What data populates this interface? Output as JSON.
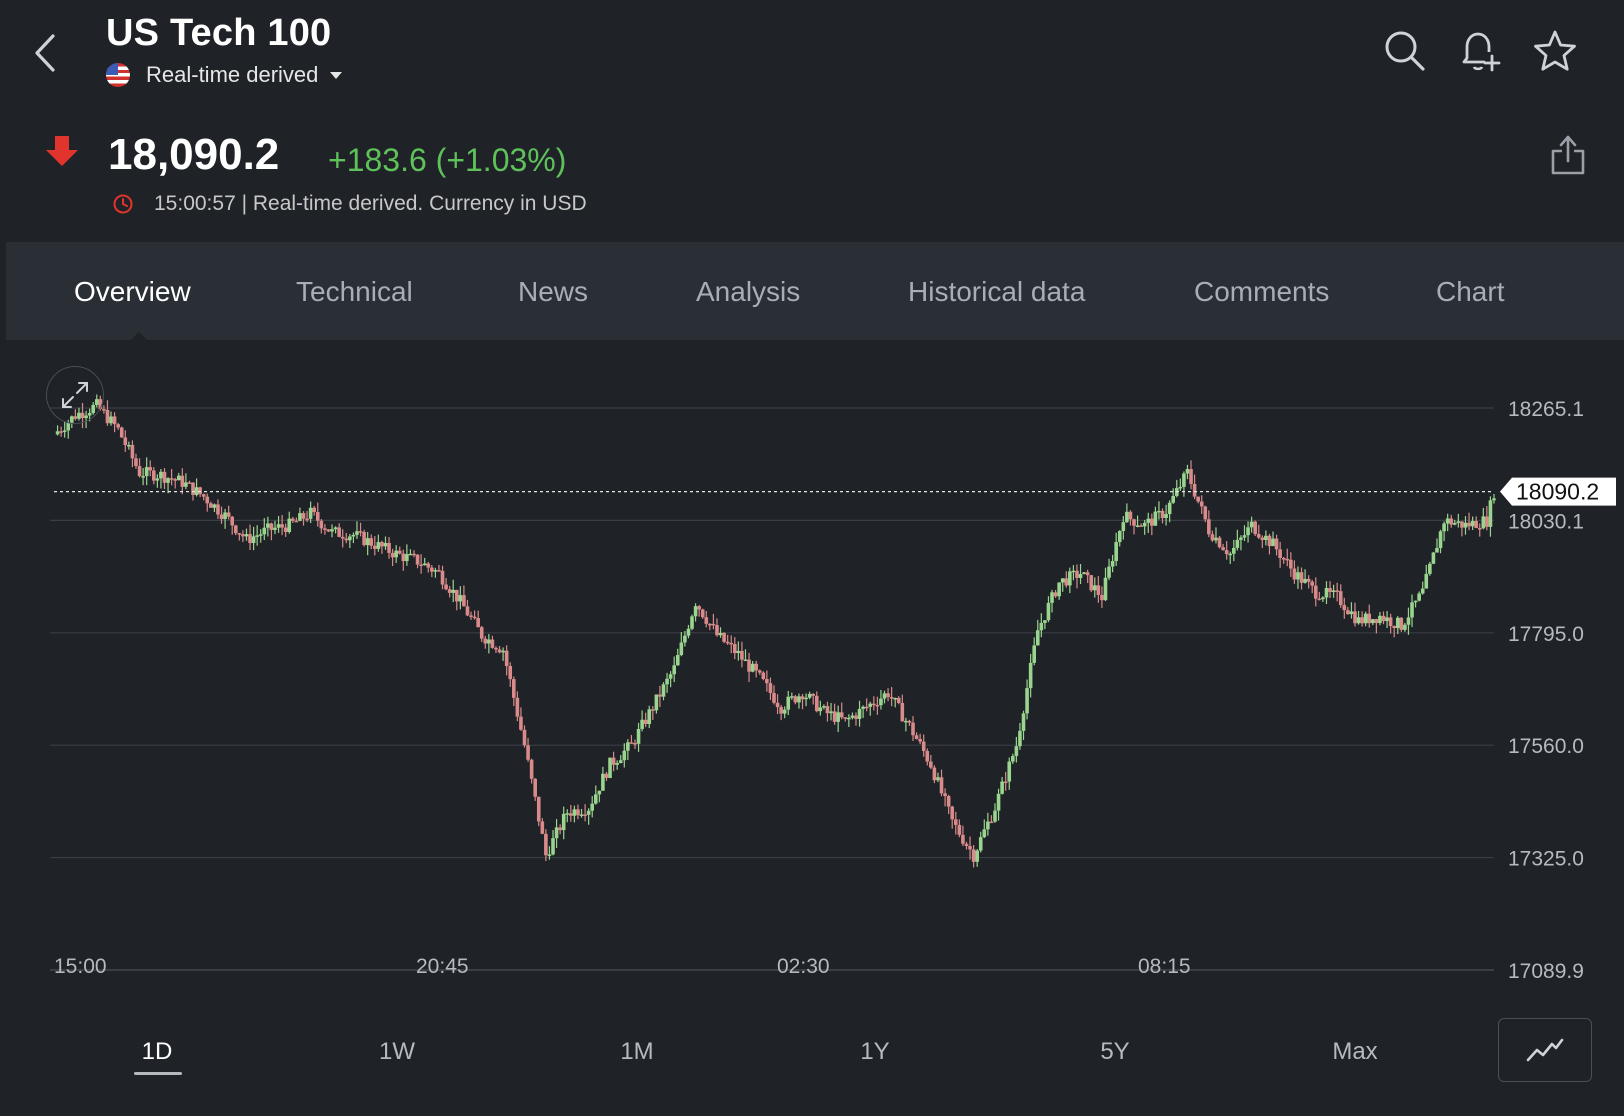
{
  "header": {
    "title": "US Tech 100",
    "source_label": "Real-time derived"
  },
  "quote": {
    "price": "18,090.2",
    "change": "+183.6 (+1.03%)",
    "meta": "15:00:57 | Real-time derived. Currency in USD"
  },
  "tabs": [
    {
      "label": "Overview",
      "active": true
    },
    {
      "label": "Technical"
    },
    {
      "label": "News"
    },
    {
      "label": "Analysis"
    },
    {
      "label": "Historical data"
    },
    {
      "label": "Comments"
    },
    {
      "label": "Chart"
    }
  ],
  "periods": [
    {
      "label": "1D",
      "active": true
    },
    {
      "label": "1W"
    },
    {
      "label": "1M"
    },
    {
      "label": "1Y"
    },
    {
      "label": "5Y"
    },
    {
      "label": "Max"
    }
  ],
  "colors": {
    "background": "#1f2227",
    "tab_bar": "#2a2e35",
    "up": "#5fc15a",
    "candle_up": "#9ad58f",
    "candle_down": "#d98b8b",
    "down_arrow": "#e0342c"
  },
  "icons": [
    "back-chevron-icon",
    "search-icon",
    "bell-plus-icon",
    "star-icon",
    "down-arrow-icon",
    "clock-icon",
    "share-icon",
    "expand-icon",
    "line-chart-icon"
  ],
  "chart_data": {
    "type": "candlestick",
    "y_ticks": [
      "18265.1",
      "18030.1",
      "17795.0",
      "17560.0",
      "17325.0",
      "17089.9"
    ],
    "x_ticks": [
      "15:00",
      "20:45",
      "02:30",
      "08:15"
    ],
    "current_price_label": "18090.2",
    "current_price": 18090.2,
    "ylim": [
      17089.9,
      18265.1
    ],
    "grid": true,
    "close_path": [
      [
        0,
        18210
      ],
      [
        6,
        18250
      ],
      [
        12,
        18270
      ],
      [
        18,
        18220
      ],
      [
        24,
        18130
      ],
      [
        30,
        18125
      ],
      [
        36,
        18110
      ],
      [
        42,
        18080
      ],
      [
        48,
        18040
      ],
      [
        54,
        17990
      ],
      [
        60,
        18010
      ],
      [
        66,
        18020
      ],
      [
        72,
        18045
      ],
      [
        78,
        18005
      ],
      [
        84,
        18000
      ],
      [
        90,
        17980
      ],
      [
        96,
        17960
      ],
      [
        102,
        17945
      ],
      [
        108,
        17920
      ],
      [
        114,
        17860
      ],
      [
        120,
        17790
      ],
      [
        126,
        17760
      ],
      [
        132,
        17560
      ],
      [
        138,
        17330
      ],
      [
        144,
        17420
      ],
      [
        150,
        17430
      ],
      [
        156,
        17520
      ],
      [
        162,
        17560
      ],
      [
        168,
        17640
      ],
      [
        174,
        17720
      ],
      [
        180,
        17860
      ],
      [
        186,
        17790
      ],
      [
        192,
        17750
      ],
      [
        198,
        17700
      ],
      [
        204,
        17640
      ],
      [
        210,
        17670
      ],
      [
        216,
        17630
      ],
      [
        222,
        17610
      ],
      [
        228,
        17640
      ],
      [
        234,
        17670
      ],
      [
        240,
        17600
      ],
      [
        246,
        17520
      ],
      [
        252,
        17400
      ],
      [
        258,
        17330
      ],
      [
        264,
        17430
      ],
      [
        270,
        17560
      ],
      [
        276,
        17800
      ],
      [
        282,
        17900
      ],
      [
        288,
        17920
      ],
      [
        294,
        17870
      ],
      [
        300,
        18040
      ],
      [
        306,
        18020
      ],
      [
        312,
        18050
      ],
      [
        318,
        18130
      ],
      [
        324,
        18010
      ],
      [
        330,
        17960
      ],
      [
        336,
        18020
      ],
      [
        342,
        17980
      ],
      [
        348,
        17920
      ],
      [
        354,
        17880
      ],
      [
        360,
        17870
      ],
      [
        366,
        17820
      ],
      [
        372,
        17830
      ],
      [
        378,
        17810
      ],
      [
        384,
        17880
      ],
      [
        390,
        18030
      ],
      [
        396,
        18020
      ],
      [
        402,
        18030
      ],
      [
        404,
        18090
      ]
    ]
  }
}
